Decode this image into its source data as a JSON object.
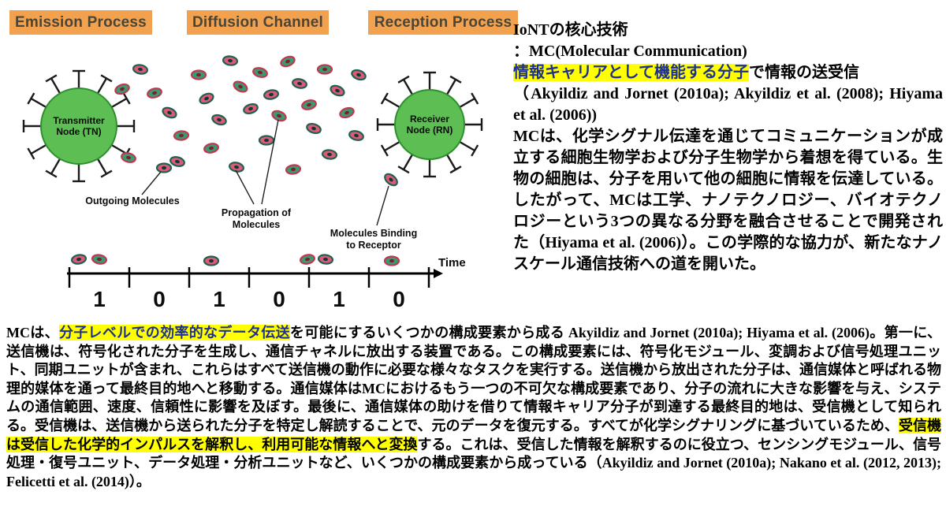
{
  "colors": {
    "page_bg": "#FFFFFF",
    "header_bg": "#F2A24E",
    "header_text": "#4A4537",
    "highlight_bg": "#FFFF00"
  },
  "diagram": {
    "headers": [
      "Emission Process",
      "Diffusion Channel",
      "Reception Process"
    ],
    "transmitter_label": [
      "Transmitter",
      "Node (TN)"
    ],
    "receiver_label": [
      "Receiver",
      "Node (RN)"
    ],
    "annotations": {
      "outgoing": [
        "Outgoing Molecules"
      ],
      "propagation": [
        "Propagation of",
        "Molecules"
      ],
      "binding": [
        "Molecules Binding",
        "to Receptor"
      ]
    },
    "time_label": "Time",
    "bits": [
      "1",
      "0",
      "1",
      "0",
      "1",
      "0"
    ],
    "colors": {
      "node_fill": "#5CBE53",
      "node_stroke": "#2E8F2E",
      "receptor": "#1A1A1A",
      "molecules": {
        "a": {
          "fill": "#DB5C74",
          "ring": "#215F52",
          "dot": "#14343C"
        },
        "b": {
          "fill": "#3A9B70",
          "ring": "#BF3750",
          "dot": "#7E1D30"
        }
      }
    }
  },
  "right_panel": {
    "segments": [
      {
        "text": "IoNTの核心技術",
        "br": 1
      },
      {
        "text": " ：MC(Molecular Communication)",
        "br": 1
      },
      {
        "text": "情報キャリアとして機能する分子",
        "highlight": true,
        "color": "#1F3093"
      },
      {
        "text": "で情報の送受信",
        "br": 1
      },
      {
        "text": "（Akyildiz and Jornet (2010a); Akyildiz et al. (2008); Hiyama et al. (2006))",
        "br": 1
      },
      {
        "text": "MCは、化学シグナル伝達を通じてコミュニケーションが成立する細胞生物学および分子生物学から着想を得ている。生物の細胞は、分子を用いて他の細胞に情報を伝達している。したがって、MCは工学、ナノテクノロジー、バイオテクノロジーという3つの異なる分野を融合させることで開発された（Hiyama et al. (2006)）。この学際的な協力が、新たなナノスケール通信技術への道を開いた。"
      }
    ]
  },
  "bottom": {
    "segments": [
      {
        "text": "MCは、"
      },
      {
        "text": "分子レベルでの効率的なデータ伝送",
        "highlight": true,
        "color": "#1F3093"
      },
      {
        "text": "を可能にするいくつかの構成要素から成る Akyildiz and Jornet (2010a); Hiyama et al. (2006)。第一に、送信機は、符号化された分子を生成し、通信チャネルに放出する装置である。この構成要素には、符号化モジュール、変調および信号処理ユニット、同期ユニットが含まれ、これらはすべて送信機の動作に必要な様々なタスクを実行する。送信機から放出された分子は、通信媒体と呼ばれる物理的媒体を通って最終目的地へと移動する。通信媒体はMCにおけるもう一つの不可欠な構成要素であり、分子の流れに大きな影響を与え、システムの通信範囲、速度、信頼性に影響を及ぼす。最後に、通信媒体の助けを借りて情報キャリア分子が到達する最終目的地は、受信機として知られる。受信機は、送信機から送られた分子を特定し解読することで、元のデータを復元する。すべてが化学シグナリングに基づいているため、"
      },
      {
        "text": "受信機は受信した化学的インパルスを解釈し、利用可能な情報へと変換",
        "highlight": true
      },
      {
        "text": "する。これは、受信した情報を解釈するのに役立つ、センシングモジュール、信号処理・復号ユニット、データ処理・分析ユニットなど、いくつかの構成要素から成っている（Akyildiz and Jornet (2010a); Nakano et al. (2012, 2013); Felicetti et al. (2014)）。"
      }
    ]
  }
}
